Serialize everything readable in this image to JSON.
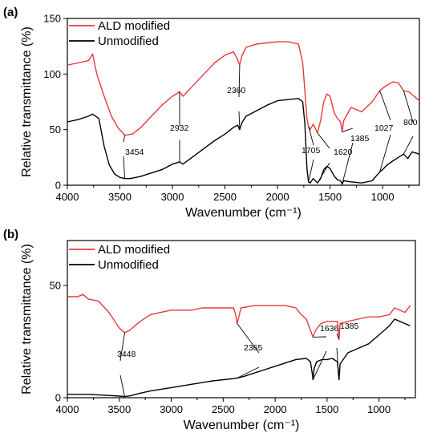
{
  "figure": {
    "panel_labels": [
      "(a)",
      "(b)"
    ]
  },
  "chart_data": [
    {
      "type": "line",
      "panel": "(a)",
      "xlabel": "Wavenumber (cm⁻¹)",
      "ylabel": "Relative transmittance (%)",
      "xlim": [
        4000,
        650
      ],
      "ylim": [
        0,
        150
      ],
      "x_ticks": [
        4000,
        3500,
        3000,
        2500,
        2000,
        1500,
        1000
      ],
      "y_ticks": [
        0,
        50,
        100,
        150
      ],
      "grid": false,
      "legend": "top-left",
      "series": [
        {
          "name": "ALD modified",
          "color": "#e8393b",
          "points": [
            [
              4000,
              108
            ],
            [
              3900,
              110
            ],
            [
              3800,
              112
            ],
            [
              3760,
              118
            ],
            [
              3720,
              100
            ],
            [
              3650,
              80
            ],
            [
              3580,
              62
            ],
            [
              3520,
              52
            ],
            [
              3454,
              45
            ],
            [
              3380,
              46
            ],
            [
              3300,
              52
            ],
            [
              3200,
              62
            ],
            [
              3100,
              72
            ],
            [
              3000,
              80
            ],
            [
              2932,
              84
            ],
            [
              2900,
              80
            ],
            [
              2800,
              90
            ],
            [
              2700,
              100
            ],
            [
              2600,
              110
            ],
            [
              2500,
              117
            ],
            [
              2420,
              120
            ],
            [
              2380,
              113
            ],
            [
              2360,
              108
            ],
            [
              2340,
              116
            ],
            [
              2300,
              124
            ],
            [
              2200,
              127
            ],
            [
              2100,
              128
            ],
            [
              2000,
              129
            ],
            [
              1900,
              129
            ],
            [
              1850,
              128
            ],
            [
              1800,
              127
            ],
            [
              1760,
              110
            ],
            [
              1740,
              85
            ],
            [
              1720,
              60
            ],
            [
              1705,
              53
            ],
            [
              1690,
              50
            ],
            [
              1660,
              55
            ],
            [
              1620,
              47
            ],
            [
              1590,
              58
            ],
            [
              1560,
              75
            ],
            [
              1530,
              82
            ],
            [
              1500,
              80
            ],
            [
              1460,
              65
            ],
            [
              1430,
              60
            ],
            [
              1400,
              57
            ],
            [
              1385,
              48
            ],
            [
              1370,
              58
            ],
            [
              1300,
              70
            ],
            [
              1200,
              66
            ],
            [
              1100,
              75
            ],
            [
              1027,
              85
            ],
            [
              960,
              90
            ],
            [
              900,
              93
            ],
            [
              850,
              92
            ],
            [
              800,
              85
            ],
            [
              750,
              84
            ],
            [
              700,
              80
            ],
            [
              650,
              76
            ]
          ]
        },
        {
          "name": "Unmodified",
          "color": "#000000",
          "points": [
            [
              4000,
              57
            ],
            [
              3900,
              59
            ],
            [
              3800,
              62
            ],
            [
              3760,
              64
            ],
            [
              3700,
              60
            ],
            [
              3650,
              35
            ],
            [
              3600,
              18
            ],
            [
              3550,
              10
            ],
            [
              3500,
              7
            ],
            [
              3454,
              6
            ],
            [
              3400,
              6
            ],
            [
              3300,
              8
            ],
            [
              3200,
              11
            ],
            [
              3100,
              14
            ],
            [
              3000,
              19
            ],
            [
              2932,
              21
            ],
            [
              2900,
              19
            ],
            [
              2800,
              26
            ],
            [
              2700,
              33
            ],
            [
              2600,
              40
            ],
            [
              2500,
              46
            ],
            [
              2420,
              52
            ],
            [
              2380,
              54
            ],
            [
              2360,
              50
            ],
            [
              2340,
              56
            ],
            [
              2300,
              62
            ],
            [
              2200,
              67
            ],
            [
              2100,
              72
            ],
            [
              2000,
              76
            ],
            [
              1900,
              77
            ],
            [
              1800,
              78
            ],
            [
              1760,
              75
            ],
            [
              1740,
              55
            ],
            [
              1720,
              15
            ],
            [
              1705,
              3
            ],
            [
              1690,
              2
            ],
            [
              1660,
              6
            ],
            [
              1620,
              2
            ],
            [
              1590,
              6
            ],
            [
              1560,
              14
            ],
            [
              1530,
              17
            ],
            [
              1500,
              15
            ],
            [
              1460,
              8
            ],
            [
              1430,
              5
            ],
            [
              1400,
              4
            ],
            [
              1385,
              1
            ],
            [
              1370,
              4
            ],
            [
              1300,
              3
            ],
            [
              1200,
              2
            ],
            [
              1100,
              4
            ],
            [
              1027,
              12
            ],
            [
              1000,
              14
            ],
            [
              960,
              18
            ],
            [
              900,
              22
            ],
            [
              850,
              25
            ],
            [
              800,
              28
            ],
            [
              760,
              24
            ],
            [
              720,
              30
            ],
            [
              650,
              28
            ]
          ]
        }
      ],
      "annotations": [
        {
          "text": "3454",
          "x": 3454
        },
        {
          "text": "2932",
          "x": 2932
        },
        {
          "text": "2360",
          "x": 2360
        },
        {
          "text": "1705",
          "x": 1705
        },
        {
          "text": "1620",
          "x": 1620
        },
        {
          "text": "1385",
          "x": 1385
        },
        {
          "text": "1027",
          "x": 1027
        },
        {
          "text": "800",
          "x": 800
        }
      ]
    },
    {
      "type": "line",
      "panel": "(b)",
      "xlabel": "Wavenumber (cm⁻¹)",
      "ylabel": "Relative transmittance (%)",
      "xlim": [
        4000,
        650
      ],
      "ylim": [
        0,
        70
      ],
      "x_ticks": [
        4000,
        3500,
        3000,
        2500,
        2000,
        1500,
        1000
      ],
      "x_tick_labels": [
        "4000",
        "3500",
        "3000",
        "2500",
        "2000",
        "1500",
        "1000"
      ],
      "y_ticks": [
        0,
        50
      ],
      "grid": false,
      "legend": "top-left",
      "series": [
        {
          "name": "ALD modified",
          "color": "#e8393b",
          "points": [
            [
              4000,
              45
            ],
            [
              3900,
              45
            ],
            [
              3850,
              46
            ],
            [
              3800,
              44
            ],
            [
              3700,
              43
            ],
            [
              3600,
              38
            ],
            [
              3500,
              31
            ],
            [
              3448,
              29
            ],
            [
              3400,
              30
            ],
            [
              3300,
              34
            ],
            [
              3200,
              37
            ],
            [
              3100,
              38
            ],
            [
              3000,
              39
            ],
            [
              2900,
              39
            ],
            [
              2800,
              39
            ],
            [
              2700,
              40
            ],
            [
              2600,
              40
            ],
            [
              2500,
              40
            ],
            [
              2400,
              40
            ],
            [
              2380,
              37
            ],
            [
              2365,
              33
            ],
            [
              2350,
              36
            ],
            [
              2330,
              40
            ],
            [
              2200,
              41
            ],
            [
              2100,
              41
            ],
            [
              2000,
              41
            ],
            [
              1900,
              41
            ],
            [
              1800,
              40
            ],
            [
              1750,
              37
            ],
            [
              1700,
              35
            ],
            [
              1660,
              30
            ],
            [
              1636,
              27
            ],
            [
              1610,
              30
            ],
            [
              1560,
              33
            ],
            [
              1500,
              34
            ],
            [
              1450,
              34
            ],
            [
              1400,
              34
            ],
            [
              1385,
              26
            ],
            [
              1375,
              33
            ],
            [
              1300,
              34
            ],
            [
              1200,
              35
            ],
            [
              1100,
              36
            ],
            [
              1000,
              36
            ],
            [
              900,
              37
            ],
            [
              850,
              40
            ],
            [
              800,
              39
            ],
            [
              750,
              38
            ],
            [
              700,
              41
            ]
          ]
        },
        {
          "name": "Unmodified",
          "color": "#000000",
          "points": [
            [
              4000,
              1.5
            ],
            [
              3800,
              1.5
            ],
            [
              3600,
              1
            ],
            [
              3500,
              0.7
            ],
            [
              3448,
              0.5
            ],
            [
              3400,
              0.8
            ],
            [
              3300,
              2
            ],
            [
              3200,
              3
            ],
            [
              3000,
              4.5
            ],
            [
              2800,
              6
            ],
            [
              2600,
              7.5
            ],
            [
              2400,
              8.5
            ],
            [
              2365,
              8.8
            ],
            [
              2300,
              9.5
            ],
            [
              2200,
              11
            ],
            [
              2100,
              12.5
            ],
            [
              2000,
              14
            ],
            [
              1900,
              15.5
            ],
            [
              1800,
              17
            ],
            [
              1700,
              17.5
            ],
            [
              1660,
              16
            ],
            [
              1640,
              10
            ],
            [
              1636,
              8
            ],
            [
              1625,
              13
            ],
            [
              1600,
              16
            ],
            [
              1550,
              17
            ],
            [
              1500,
              17
            ],
            [
              1450,
              17.5
            ],
            [
              1400,
              16
            ],
            [
              1385,
              8
            ],
            [
              1375,
              15
            ],
            [
              1300,
              20
            ],
            [
              1200,
              22
            ],
            [
              1100,
              24
            ],
            [
              1000,
              28
            ],
            [
              900,
              32
            ],
            [
              850,
              35
            ],
            [
              800,
              34
            ],
            [
              750,
              33
            ],
            [
              700,
              32
            ]
          ]
        }
      ],
      "annotations": [
        {
          "text": "3448",
          "x": 3448
        },
        {
          "text": "2365",
          "x": 2365
        },
        {
          "text": "1636",
          "x": 1636
        },
        {
          "text": "1385",
          "x": 1385
        }
      ]
    }
  ]
}
